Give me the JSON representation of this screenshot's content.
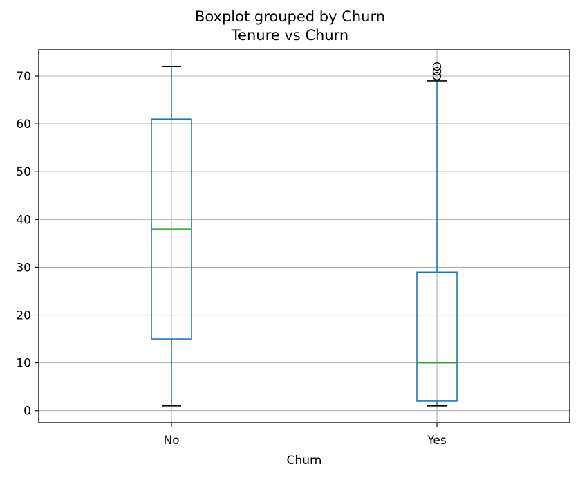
{
  "chart_data": {
    "type": "box",
    "suptitle": "Boxplot grouped by Churn",
    "title": "Tenure vs Churn",
    "xlabel": "Churn",
    "ylabel": "",
    "ylim": [
      -2.5,
      75.5
    ],
    "yticks": [
      0,
      10,
      20,
      30,
      40,
      50,
      60,
      70
    ],
    "grid": true,
    "categories": [
      "No",
      "Yes"
    ],
    "boxes": [
      {
        "category": "No",
        "whisker_low": 1,
        "q1": 15,
        "median": 38,
        "q3": 61,
        "whisker_high": 72,
        "outliers": []
      },
      {
        "category": "Yes",
        "whisker_low": 1,
        "q1": 2,
        "median": 10,
        "q3": 29,
        "whisker_high": 69,
        "outliers": [
          70,
          71,
          72
        ]
      }
    ],
    "colors": {
      "box": "#1f77b4",
      "median": "#2ca02c",
      "whisker_cap": "#000000",
      "grid": "#b0b0b0",
      "outlier": "#000000"
    }
  }
}
